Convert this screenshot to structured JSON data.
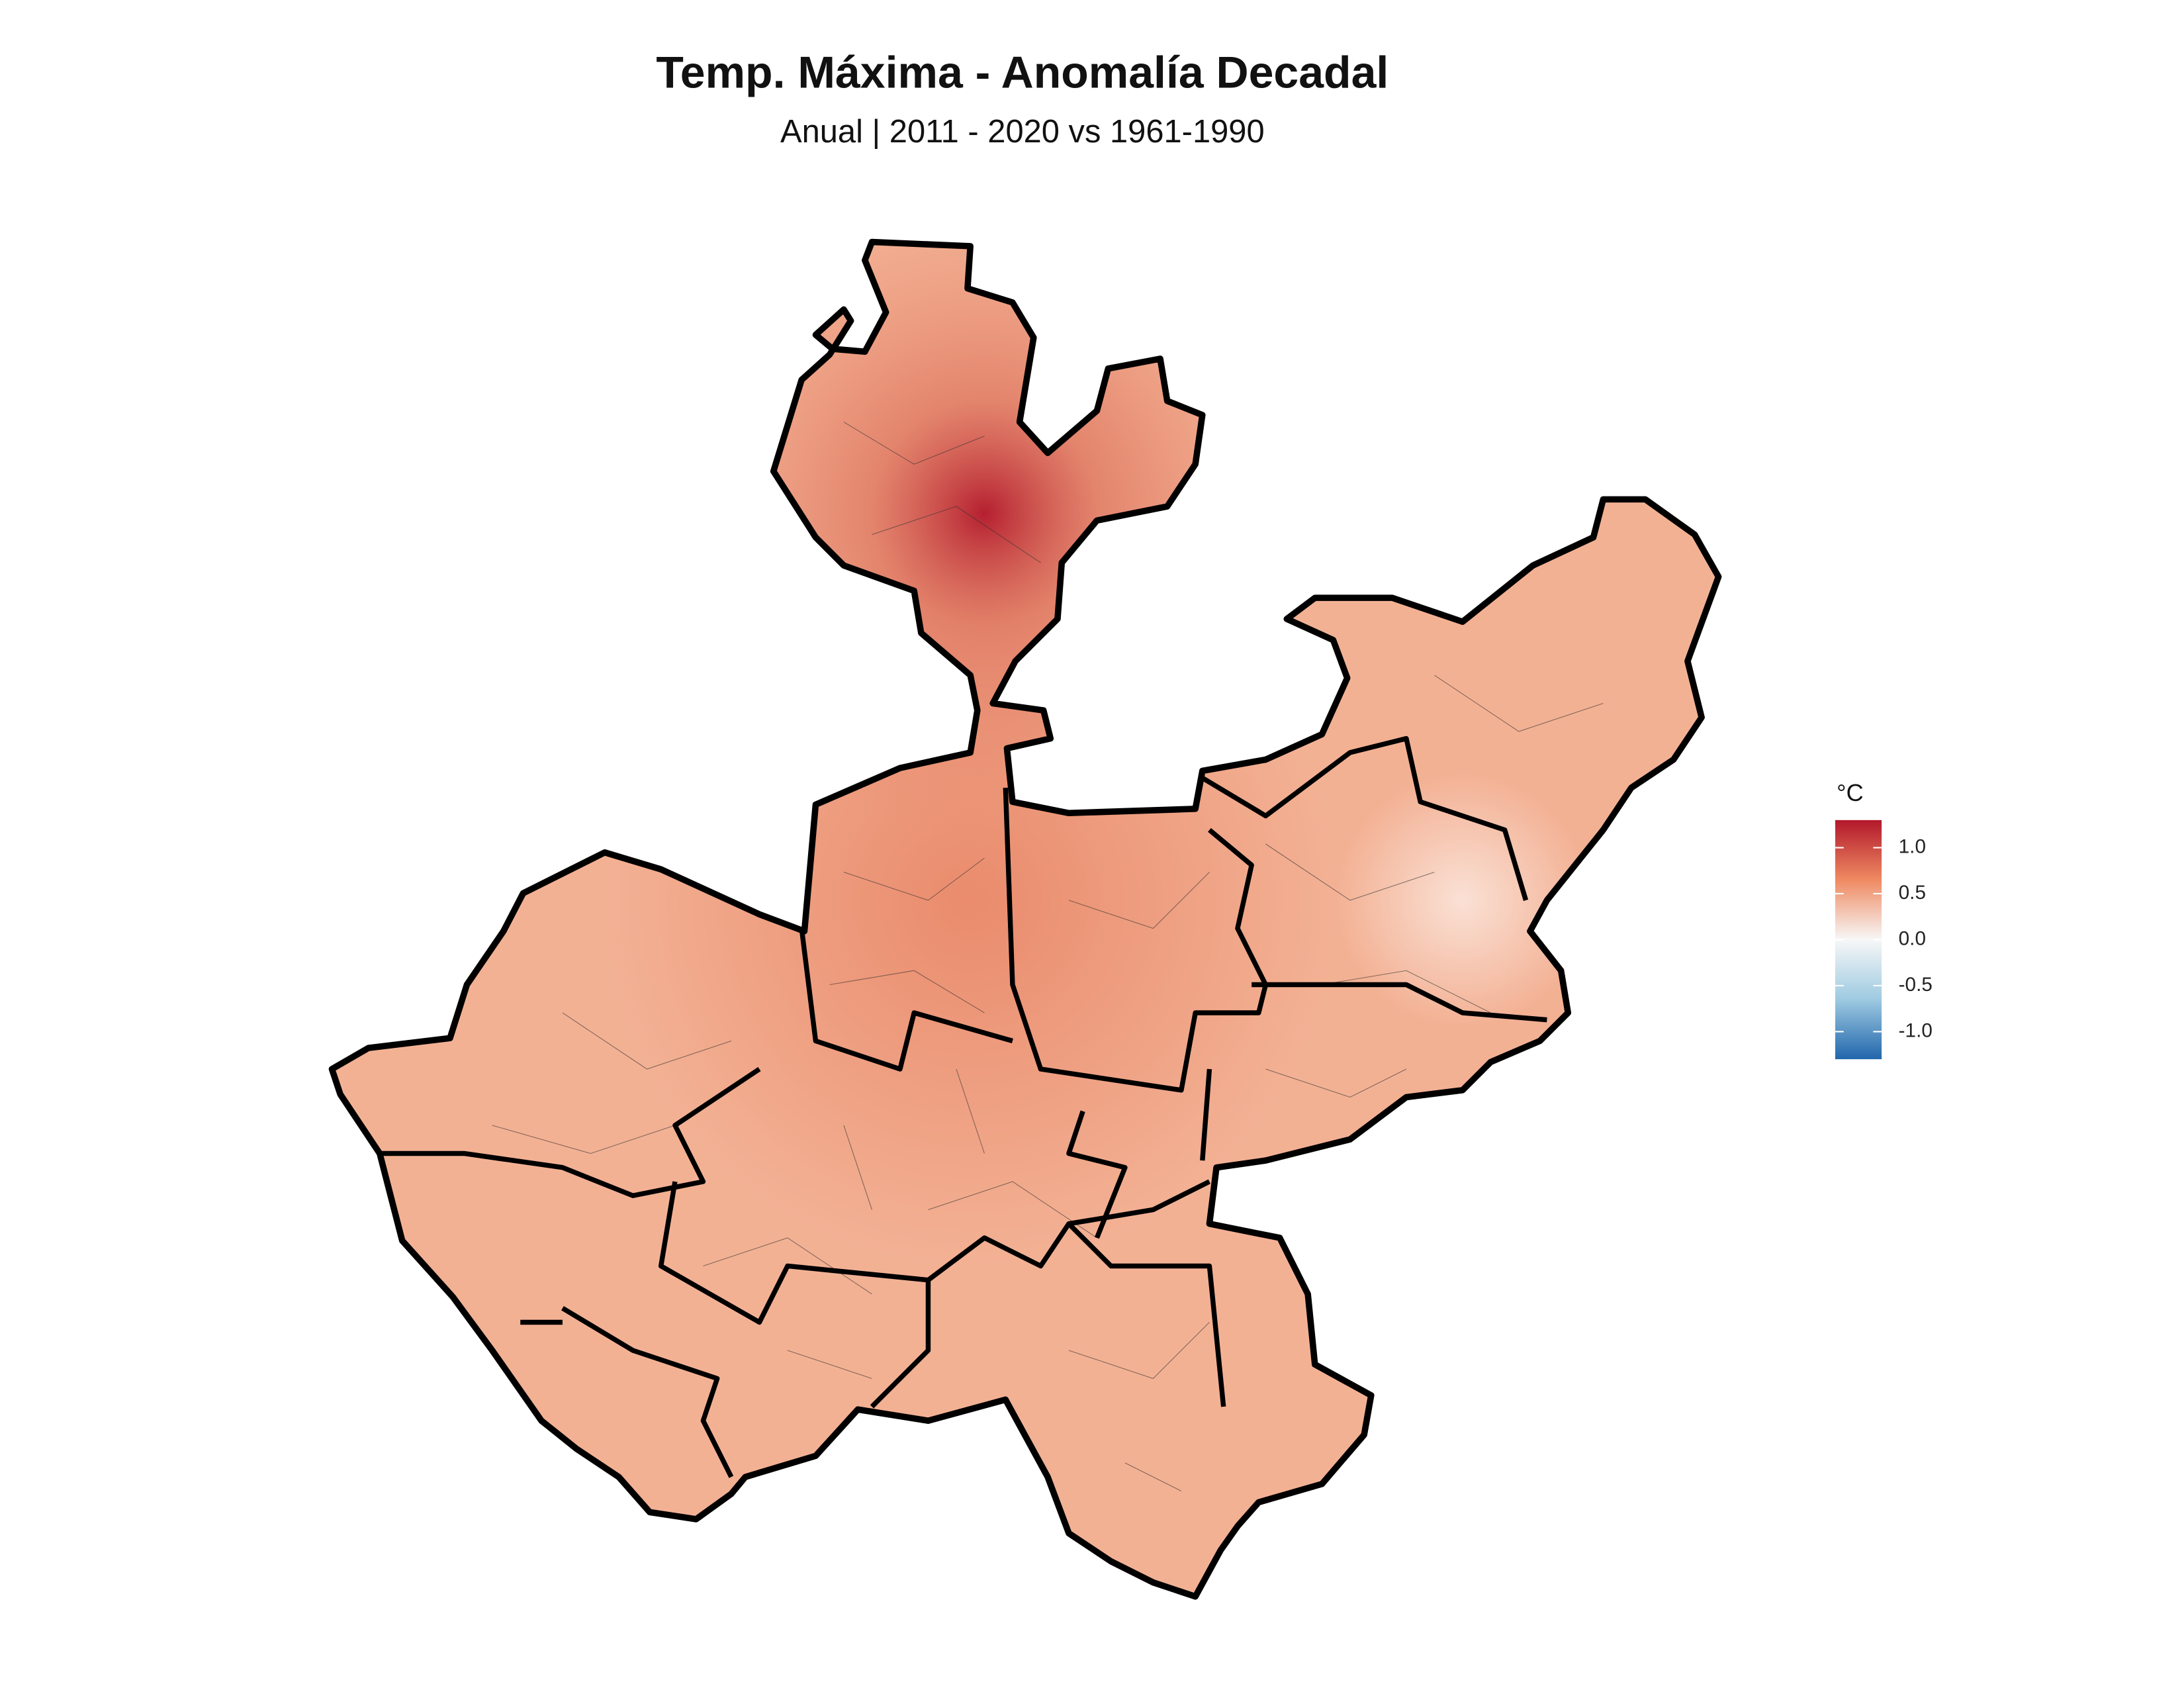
{
  "header": {
    "title": "Temp. Máxima - Anomalía Decadal",
    "subtitle": "Anual | 2011 - 2020 vs 1961-1990"
  },
  "legend": {
    "title": "°C",
    "lim": [
      -1.3,
      1.3
    ],
    "ticks": [
      {
        "value": 1,
        "label": "1.0"
      },
      {
        "value": 0.5,
        "label": "0.5"
      },
      {
        "value": 0,
        "label": "0.0"
      },
      {
        "value": -0.5,
        "label": "-0.5"
      },
      {
        "value": -1,
        "label": "-1.0"
      }
    ],
    "colors": [
      "#2166ac",
      "#9ecae1",
      "#f7f7f7",
      "#ef8a62",
      "#b2182b"
    ]
  }
}
